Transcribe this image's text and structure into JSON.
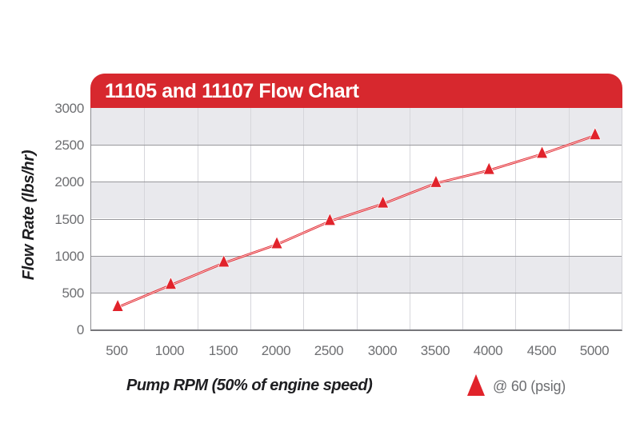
{
  "header": {
    "title": "11105 and 11107 Flow Chart",
    "background": "#d7282e",
    "text_color": "#ffffff"
  },
  "chart_data": {
    "type": "line",
    "title": "11105 and 11107 Flow Chart",
    "xlabel": "Pump RPM (50% of engine speed)",
    "ylabel": "Flow Rate (lbs/hr)",
    "x": [
      500,
      1000,
      1500,
      2000,
      2500,
      3000,
      3500,
      4000,
      4500,
      5000
    ],
    "series": [
      {
        "name": "@ 60 (psig)",
        "marker": "triangle-up",
        "color": "#e1232b",
        "values": [
          300,
          600,
          900,
          1150,
          1465,
          1700,
          1980,
          2155,
          2375,
          2625
        ]
      }
    ],
    "ylim": [
      0,
      3000
    ],
    "ytick_step": 500,
    "y_tick_labels": [
      "3000",
      "2500",
      "2000",
      "1500",
      "1000",
      "500",
      "0"
    ],
    "x_tick_labels": [
      "500",
      "1000",
      "1500",
      "2000",
      "2500",
      "3000",
      "3500",
      "4000",
      "4500",
      "5000"
    ],
    "grid": {
      "horizontal_bands": true,
      "band_colors": [
        "#e9e9ed",
        "#ffffff"
      ],
      "vertical_gridlines": true
    },
    "legend_position": "bottom-right"
  },
  "legend": {
    "label": "@ 60 (psig)",
    "marker": "triangle-icon",
    "marker_color": "#e1232b"
  },
  "colors": {
    "header_red": "#d7282e",
    "series_red": "#e1232b",
    "band_gray": "#e9e9ed",
    "vertical_gridline": "#d6d6db",
    "band_border": "#98989c",
    "bottom_axis": "#77777b",
    "tick_text": "#6d6e71",
    "axis_title_text": "#1e1e21"
  }
}
